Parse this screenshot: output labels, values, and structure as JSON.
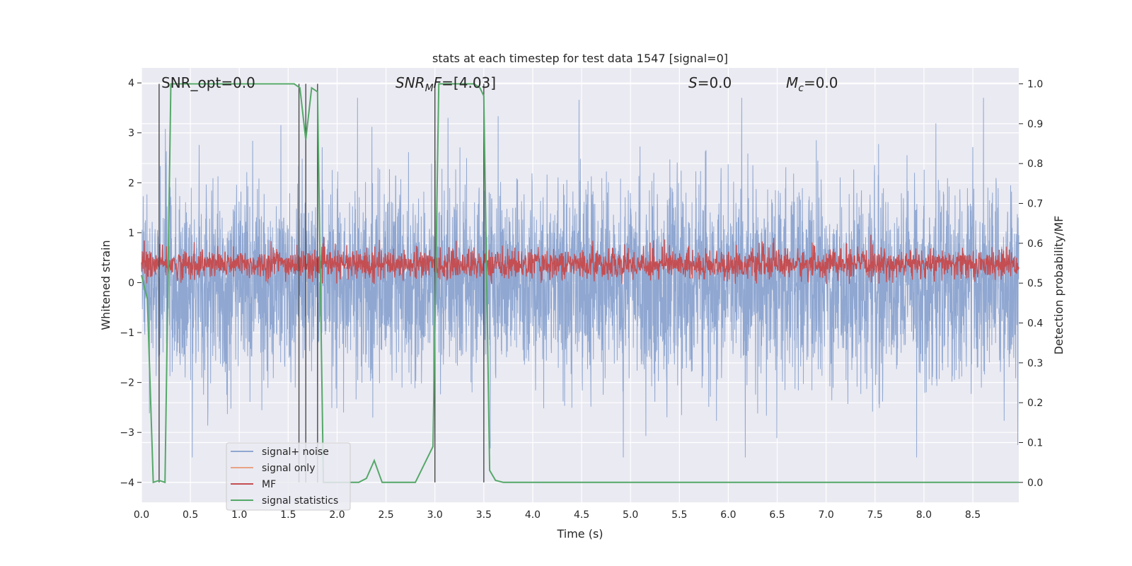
{
  "chart_data": {
    "type": "line",
    "title": "stats at each timestep for test data 1547 [signal=0]",
    "xlabel": "Time (s)",
    "ylabel_left": "Whitened strain",
    "ylabel_right": "Detection probability/MF",
    "xlim": [
      0.0,
      8.97
    ],
    "ylim_left": [
      -4.4,
      4.3
    ],
    "ylim_right": [
      -0.05,
      1.04
    ],
    "grid": true,
    "xticks": [
      "0.0",
      "0.5",
      "1.0",
      "1.5",
      "2.0",
      "2.5",
      "3.0",
      "3.5",
      "4.0",
      "4.5",
      "5.0",
      "5.5",
      "6.0",
      "6.5",
      "7.0",
      "7.5",
      "8.0",
      "8.5"
    ],
    "yticks_left": [
      "−4",
      "−3",
      "−2",
      "−1",
      "0",
      "1",
      "2",
      "3",
      "4"
    ],
    "yticks_right": [
      "0.0",
      "0.1",
      "0.2",
      "0.3",
      "0.4",
      "0.5",
      "0.6",
      "0.7",
      "0.8",
      "0.9",
      "1.0"
    ],
    "annotations": {
      "snr_opt": "SNR_opt=0.0",
      "snr_mf_italic": "SNR",
      "snr_mf_sub": "M",
      "snr_mf_tail_italic": "F",
      "snr_mf_value": "=[4.03]",
      "s_italic": "S",
      "s_value": "=0.0",
      "mc_italic": "M",
      "mc_sub": "c",
      "mc_value": "=0.0"
    },
    "legend": {
      "position": "lower-left",
      "entries": [
        "signal+ noise",
        "signal only",
        "MF",
        "signal statistics"
      ]
    },
    "colors": {
      "noise": "#8fa7d1",
      "signal_only": "#e8a383",
      "mf": "#c44e52",
      "stats": "#55a868",
      "vlines": "#4a4a4a",
      "plot_bg": "#eaeaf2",
      "grid": "#ffffff"
    },
    "noise_envelope": {
      "low": -2.0,
      "high": 2.0,
      "peak_max": 3.7,
      "peak_min": -3.5
    },
    "mf_band": {
      "low": 0.52,
      "high": 0.57,
      "peak_high": 0.63
    },
    "vertical_lines_x": [
      0.18,
      1.61,
      1.68,
      1.8,
      3.0,
      3.5
    ],
    "series": [
      {
        "name": "signal statistics",
        "axis": "right",
        "x": [
          0.0,
          0.06,
          0.12,
          0.18,
          0.24,
          0.3,
          0.6,
          0.9,
          1.2,
          1.5,
          1.56,
          1.62,
          1.68,
          1.74,
          1.8,
          1.86,
          1.92,
          2.0,
          2.1,
          2.22,
          2.3,
          2.38,
          2.46,
          2.6,
          2.8,
          2.98,
          3.04,
          3.1,
          3.2,
          3.3,
          3.4,
          3.46,
          3.5,
          3.56,
          3.62,
          3.7,
          4.0,
          5.0,
          6.0,
          7.0,
          8.0,
          8.97
        ],
        "values": [
          0.52,
          0.46,
          0.0,
          0.005,
          0.0,
          1.0,
          1.0,
          1.0,
          1.0,
          1.0,
          1.0,
          0.99,
          0.86,
          0.99,
          0.98,
          0.0,
          0.0,
          0.0,
          0.0,
          0.0,
          0.01,
          0.055,
          0.0,
          0.0,
          0.0,
          0.09,
          1.0,
          1.0,
          1.0,
          1.0,
          1.0,
          0.99,
          0.97,
          0.03,
          0.005,
          0.0,
          0.0,
          0.0,
          0.0,
          0.0,
          0.0,
          0.0
        ]
      }
    ]
  }
}
